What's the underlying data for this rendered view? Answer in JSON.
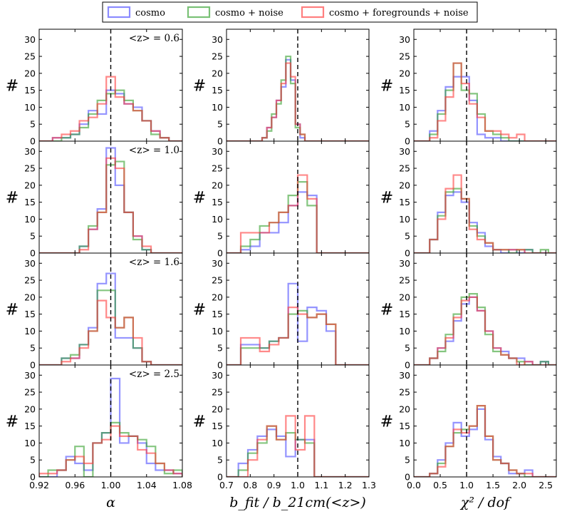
{
  "chart_data": {
    "type": "histogram-grid",
    "legend": {
      "placement": "top-center",
      "entries": [
        {
          "label": "cosmo",
          "color": "#4d4dff"
        },
        {
          "label": "cosmo + noise",
          "color": "#33a02c"
        },
        {
          "label": "cosmo + foregrounds + noise",
          "color": "#ff3b3b"
        }
      ]
    },
    "y_axis": {
      "label": "#",
      "range": [
        0,
        33
      ],
      "ticks": [
        "0",
        "5",
        "10",
        "15",
        "20",
        "25",
        "30"
      ]
    },
    "redshift_labels": [
      "<z> = 0.6",
      "<z> = 1.0",
      "<z> = 1.6",
      "<z> = 2.5"
    ],
    "columns": [
      {
        "xlabel": "α",
        "xlim": [
          0.92,
          1.08
        ],
        "xticks": [
          "0.92",
          "0.96",
          "1.00",
          "1.04",
          "1.08"
        ],
        "reference_line": 1.0,
        "rows": [
          {
            "edges": [
              0.935,
              0.945,
              0.955,
              0.965,
              0.975,
              0.985,
              0.995,
              1.005,
              1.015,
              1.025,
              1.035,
              1.045,
              1.055,
              1.065
            ],
            "series": {
              "cosmo": [
                1,
                1,
                2,
                5,
                9,
                8,
                15,
                14,
                11,
                10,
                6,
                3,
                1
              ],
              "cosmo + noise": [
                0,
                1,
                2,
                4,
                8,
                12,
                14,
                15,
                12,
                9,
                6,
                2,
                1
              ],
              "cosmo + foregrounds + noise": [
                1,
                2,
                3,
                6,
                7,
                11,
                19,
                13,
                11,
                9,
                6,
                3,
                1
              ]
            }
          },
          {
            "edges": [
              0.965,
              0.975,
              0.985,
              0.995,
              1.005,
              1.015,
              1.025,
              1.035,
              1.045
            ],
            "series": {
              "cosmo": [
                2,
                7,
                13,
                31,
                20,
                12,
                5,
                1
              ],
              "cosmo + noise": [
                2,
                8,
                12,
                26,
                27,
                12,
                4,
                1
              ],
              "cosmo + foregrounds + noise": [
                1,
                7,
                12,
                28,
                25,
                12,
                5,
                2
              ]
            }
          },
          {
            "edges": [
              0.925,
              0.935,
              0.945,
              0.955,
              0.965,
              0.975,
              0.985,
              0.995,
              1.005,
              1.015,
              1.025,
              1.035,
              1.045
            ],
            "series": {
              "cosmo": [
                0,
                0,
                2,
                2,
                6,
                11,
                24,
                27,
                8,
                8,
                5,
                1
              ],
              "cosmo + noise": [
                0,
                0,
                2,
                3,
                6,
                10,
                22,
                22,
                11,
                14,
                5,
                1
              ],
              "cosmo + foregrounds + noise": [
                0,
                0,
                1,
                2,
                5,
                10,
                19,
                14,
                11,
                14,
                8,
                1
              ]
            }
          },
          {
            "edges": [
              0.92,
              0.93,
              0.94,
              0.95,
              0.96,
              0.97,
              0.98,
              0.99,
              1.0,
              1.01,
              1.02,
              1.03,
              1.04,
              1.05,
              1.06,
              1.07,
              1.08
            ],
            "series": {
              "cosmo": [
                0,
                0,
                2,
                6,
                4,
                2,
                10,
                13,
                29,
                10,
                12,
                10,
                4,
                2,
                2,
                1
              ],
              "cosmo + noise": [
                0,
                2,
                2,
                5,
                9,
                0,
                10,
                13,
                16,
                13,
                12,
                11,
                9,
                4,
                1,
                2
              ],
              "cosmo + foregrounds + noise": [
                1,
                1,
                2,
                5,
                6,
                4,
                10,
                11,
                15,
                12,
                12,
                8,
                7,
                4,
                2,
                1
              ]
            }
          }
        ]
      },
      {
        "xlabel": "b_fit / b_21cm(<z>)",
        "xlim": [
          0.7,
          1.3
        ],
        "xticks": [
          "0.7",
          "0.8",
          "0.9",
          "1.0",
          "1.1",
          "1.2",
          "1.3"
        ],
        "reference_line": 1.0,
        "rows": [
          {
            "edges": [
              0.85,
              0.87,
              0.89,
              0.91,
              0.93,
              0.95,
              0.97,
              0.99,
              1.01,
              1.03
            ],
            "series": {
              "cosmo": [
                1,
                4,
                7,
                12,
                16,
                24,
                18,
                5,
                1
              ],
              "cosmo + noise": [
                1,
                3,
                8,
                11,
                18,
                25,
                17,
                4,
                2
              ],
              "cosmo + foregrounds + noise": [
                1,
                4,
                7,
                12,
                17,
                23,
                19,
                5,
                2
              ]
            }
          },
          {
            "edges": [
              0.76,
              0.8,
              0.84,
              0.88,
              0.92,
              0.96,
              1.0,
              1.04,
              1.08,
              1.12
            ],
            "series": {
              "cosmo": [
                1,
                2,
                6,
                6,
                9,
                14,
                18,
                17,
                0
              ],
              "cosmo + noise": [
                2,
                4,
                8,
                9,
                12,
                17,
                21,
                14,
                0
              ],
              "cosmo + foregrounds + noise": [
                6,
                6,
                6,
                9,
                12,
                14,
                23,
                16,
                0
              ]
            }
          },
          {
            "edges": [
              0.76,
              0.8,
              0.84,
              0.88,
              0.92,
              0.96,
              1.0,
              1.04,
              1.08,
              1.12,
              1.16,
              1.2
            ],
            "series": {
              "cosmo": [
                6,
                6,
                5,
                7,
                8,
                24,
                7,
                17,
                16,
                10,
                0
              ],
              "cosmo + noise": [
                5,
                5,
                5,
                7,
                8,
                15,
                16,
                14,
                15,
                12,
                0
              ],
              "cosmo + foregrounds + noise": [
                8,
                8,
                4,
                6,
                8,
                17,
                15,
                14,
                15,
                12,
                0
              ]
            }
          },
          {
            "edges": [
              0.75,
              0.79,
              0.83,
              0.87,
              0.91,
              0.95,
              0.99,
              1.03,
              1.07,
              1.11
            ],
            "series": {
              "cosmo": [
                4,
                8,
                12,
                14,
                12,
                6,
                11,
                11,
                0
              ],
              "cosmo + noise": [
                2,
                7,
                10,
                15,
                11,
                13,
                11,
                10,
                0
              ],
              "cosmo + foregrounds + noise": [
                0,
                5,
                11,
                15,
                11,
                18,
                8,
                18,
                0
              ]
            }
          }
        ]
      },
      {
        "xlabel": "χ² / dof",
        "xlim": [
          0.0,
          2.7
        ],
        "xticks": [
          "0.0",
          "0.5",
          "1.0",
          "1.5",
          "2.0",
          "2.5"
        ],
        "reference_line": 1.0,
        "rows": [
          {
            "edges": [
              0.3,
              0.45,
              0.6,
              0.75,
              0.9,
              1.05,
              1.2,
              1.35,
              1.5,
              1.65,
              1.8,
              1.95,
              2.1,
              2.25
            ],
            "series": {
              "cosmo": [
                3,
                9,
                16,
                19,
                19,
                12,
                2,
                1,
                1,
                0,
                0,
                0,
                0
              ],
              "cosmo + noise": [
                2,
                8,
                15,
                23,
                15,
                14,
                8,
                3,
                2,
                1,
                0,
                0,
                0
              ],
              "cosmo + foregrounds + noise": [
                1,
                6,
                13,
                23,
                17,
                11,
                7,
                3,
                3,
                2,
                1,
                2,
                0
              ]
            }
          },
          {
            "edges": [
              0.3,
              0.45,
              0.6,
              0.75,
              0.9,
              1.05,
              1.2,
              1.35,
              1.5,
              1.65,
              1.8,
              1.95,
              2.1,
              2.25,
              2.4,
              2.55
            ],
            "series": {
              "cosmo": [
                4,
                12,
                17,
                18,
                15,
                9,
                6,
                2,
                1,
                0,
                1,
                0,
                1,
                0,
                0
              ],
              "cosmo + noise": [
                4,
                11,
                18,
                19,
                16,
                8,
                5,
                3,
                1,
                1,
                0,
                1,
                1,
                0,
                1
              ],
              "cosmo + foregrounds + noise": [
                4,
                10,
                19,
                23,
                16,
                7,
                4,
                3,
                1,
                1,
                1,
                1,
                0,
                0,
                0
              ]
            }
          },
          {
            "edges": [
              0.3,
              0.45,
              0.6,
              0.75,
              0.9,
              1.05,
              1.2,
              1.35,
              1.5,
              1.65,
              1.8,
              1.95,
              2.1,
              2.25,
              2.4,
              2.55
            ],
            "series": {
              "cosmo": [
                2,
                5,
                7,
                13,
                18,
                20,
                16,
                10,
                5,
                4,
                2,
                2,
                1,
                0,
                1
              ],
              "cosmo + noise": [
                2,
                4,
                9,
                15,
                20,
                21,
                17,
                9,
                4,
                3,
                2,
                1,
                0,
                0,
                1
              ],
              "cosmo + foregrounds + noise": [
                2,
                5,
                8,
                14,
                19,
                20,
                16,
                10,
                5,
                3,
                2,
                0,
                1,
                0,
                0
              ]
            }
          },
          {
            "edges": [
              0.3,
              0.45,
              0.6,
              0.75,
              0.9,
              1.05,
              1.2,
              1.35,
              1.5,
              1.65,
              1.8,
              1.95,
              2.1,
              2.25,
              2.4
            ],
            "series": {
              "cosmo": [
                1,
                5,
                10,
                16,
                12,
                14,
                20,
                11,
                6,
                4,
                1,
                1,
                2,
                0
              ],
              "cosmo + noise": [
                1,
                4,
                9,
                13,
                14,
                15,
                21,
                12,
                5,
                4,
                2,
                1,
                0,
                0
              ],
              "cosmo + foregrounds + noise": [
                1,
                3,
                9,
                14,
                13,
                15,
                21,
                12,
                5,
                4,
                2,
                1,
                1,
                0
              ]
            }
          }
        ]
      }
    ]
  }
}
